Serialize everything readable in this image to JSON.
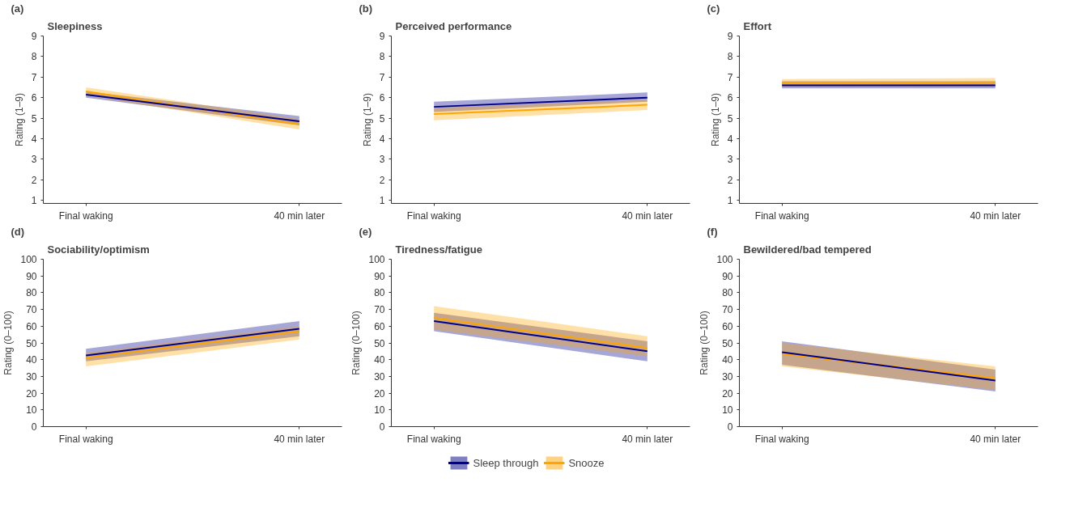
{
  "chart_data": [
    {
      "type": "line",
      "title": "Sleepiness",
      "annotations": [
        "(a)"
      ],
      "ylabel": "Rating (1–9)",
      "categories": [
        "Final waking",
        "40 min later"
      ],
      "ylim": [
        0.85,
        9
      ],
      "yticks": [
        1,
        2,
        3,
        4,
        5,
        6,
        7,
        8,
        9
      ],
      "legend": "bottom",
      "series": [
        {
          "name": "Sleep through",
          "color": "#00008b",
          "values": [
            6.15,
            4.85
          ],
          "lower": [
            6.0,
            4.65
          ],
          "upper": [
            6.3,
            5.1
          ]
        },
        {
          "name": "Snooze",
          "color": "#ffa500",
          "values": [
            6.3,
            4.7
          ],
          "lower": [
            6.1,
            4.45
          ],
          "upper": [
            6.5,
            4.95
          ]
        }
      ]
    },
    {
      "type": "line",
      "title": "Perceived performance",
      "annotations": [
        "(b)"
      ],
      "ylabel": "Rating (1–9)",
      "categories": [
        "Final waking",
        "40 min later"
      ],
      "ylim": [
        0.85,
        9
      ],
      "yticks": [
        1,
        2,
        3,
        4,
        5,
        6,
        7,
        8,
        9
      ],
      "series": [
        {
          "color": "#00008b",
          "values": [
            5.55,
            6.0
          ],
          "lower": [
            5.3,
            5.8
          ],
          "upper": [
            5.8,
            6.25
          ]
        },
        {
          "color": "#ffa500",
          "values": [
            5.2,
            5.65
          ],
          "lower": [
            4.9,
            5.4
          ],
          "upper": [
            5.5,
            5.9
          ]
        }
      ]
    },
    {
      "type": "line",
      "title": "Effort",
      "annotations": [
        "(c)"
      ],
      "ylabel": "Rating (1–9)",
      "categories": [
        "Final waking",
        "40 min later"
      ],
      "ylim": [
        0.85,
        9
      ],
      "yticks": [
        1,
        2,
        3,
        4,
        5,
        6,
        7,
        8,
        9
      ],
      "series": [
        {
          "color": "#00008b",
          "values": [
            6.6,
            6.6
          ],
          "lower": [
            6.45,
            6.45
          ],
          "upper": [
            6.8,
            6.8
          ]
        },
        {
          "color": "#ffa500",
          "values": [
            6.7,
            6.75
          ],
          "lower": [
            6.5,
            6.55
          ],
          "upper": [
            6.9,
            6.95
          ]
        }
      ]
    },
    {
      "type": "line",
      "title": "Sociability/optimism",
      "annotations": [
        "(d)"
      ],
      "ylabel": "Rating (0–100)",
      "categories": [
        "Final waking",
        "40 min later"
      ],
      "ylim": [
        0,
        100
      ],
      "yticks": [
        0,
        10,
        20,
        30,
        40,
        50,
        60,
        70,
        80,
        90,
        100
      ],
      "series": [
        {
          "color": "#00008b",
          "values": [
            42.5,
            58.5
          ],
          "lower": [
            39,
            54
          ],
          "upper": [
            46.5,
            63
          ]
        },
        {
          "color": "#ffa500",
          "values": [
            41,
            57
          ],
          "lower": [
            36,
            52
          ],
          "upper": [
            44,
            60
          ]
        }
      ]
    },
    {
      "type": "line",
      "title": "Tiredness/fatigue",
      "annotations": [
        "(e)"
      ],
      "ylabel": "Rating (0–100)",
      "categories": [
        "Final waking",
        "40 min later"
      ],
      "ylim": [
        0,
        100
      ],
      "yticks": [
        0,
        10,
        20,
        30,
        40,
        50,
        60,
        70,
        80,
        90,
        100
      ],
      "series": [
        {
          "color": "#00008b",
          "values": [
            63,
            45
          ],
          "lower": [
            57,
            39
          ],
          "upper": [
            68,
            51
          ]
        },
        {
          "color": "#ffa500",
          "values": [
            65,
            47
          ],
          "lower": [
            58,
            42
          ],
          "upper": [
            72,
            54
          ]
        }
      ]
    },
    {
      "type": "line",
      "title": "Bewildered/bad tempered",
      "annotations": [
        "(f)"
      ],
      "ylabel": "Rating (0–100)",
      "categories": [
        "Final waking",
        "40 min later"
      ],
      "ylim": [
        0,
        100
      ],
      "yticks": [
        0,
        10,
        20,
        30,
        40,
        50,
        60,
        70,
        80,
        90,
        100
      ],
      "series": [
        {
          "color": "#00008b",
          "values": [
            44.5,
            27.5
          ],
          "lower": [
            37,
            21
          ],
          "upper": [
            51,
            34
          ]
        },
        {
          "color": "#ffa500",
          "values": [
            43.5,
            29
          ],
          "lower": [
            36,
            22
          ],
          "upper": [
            50,
            36
          ]
        }
      ]
    }
  ]
}
